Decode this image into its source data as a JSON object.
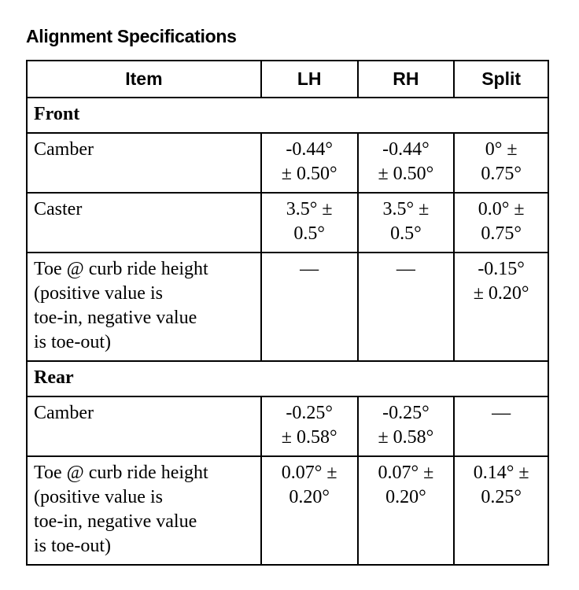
{
  "title": "Alignment Specifications",
  "headers": [
    "Item",
    "LH",
    "RH",
    "Split"
  ],
  "sections": [
    {
      "name": "Front",
      "rows": [
        {
          "item": [
            "Camber"
          ],
          "lh": [
            "-0.44°",
            "± 0.50°"
          ],
          "rh": [
            "-0.44°",
            "± 0.50°"
          ],
          "split": [
            "0° ±",
            "0.75°"
          ]
        },
        {
          "item": [
            "Caster"
          ],
          "lh": [
            "3.5° ±",
            "0.5°"
          ],
          "rh": [
            "3.5° ±",
            "0.5°"
          ],
          "split": [
            "0.0° ±",
            "0.75°"
          ]
        },
        {
          "item": [
            "Toe @ curb ride height",
            "(positive value is",
            "toe-in, negative value",
            "is toe-out)"
          ],
          "lh": [
            "—"
          ],
          "rh": [
            "—"
          ],
          "split": [
            "-0.15°",
            "± 0.20°"
          ]
        }
      ]
    },
    {
      "name": "Rear",
      "rows": [
        {
          "item": [
            "Camber"
          ],
          "lh": [
            "-0.25°",
            "± 0.58°"
          ],
          "rh": [
            "-0.25°",
            "± 0.58°"
          ],
          "split": [
            "—"
          ]
        },
        {
          "item": [
            "Toe @ curb ride height",
            "(positive value is",
            "toe-in, negative value",
            "is toe-out)"
          ],
          "lh": [
            "0.07° ±",
            "0.20°"
          ],
          "rh": [
            "0.07° ±",
            "0.20°"
          ],
          "split": [
            "0.14° ±",
            "0.25°"
          ]
        }
      ]
    }
  ]
}
